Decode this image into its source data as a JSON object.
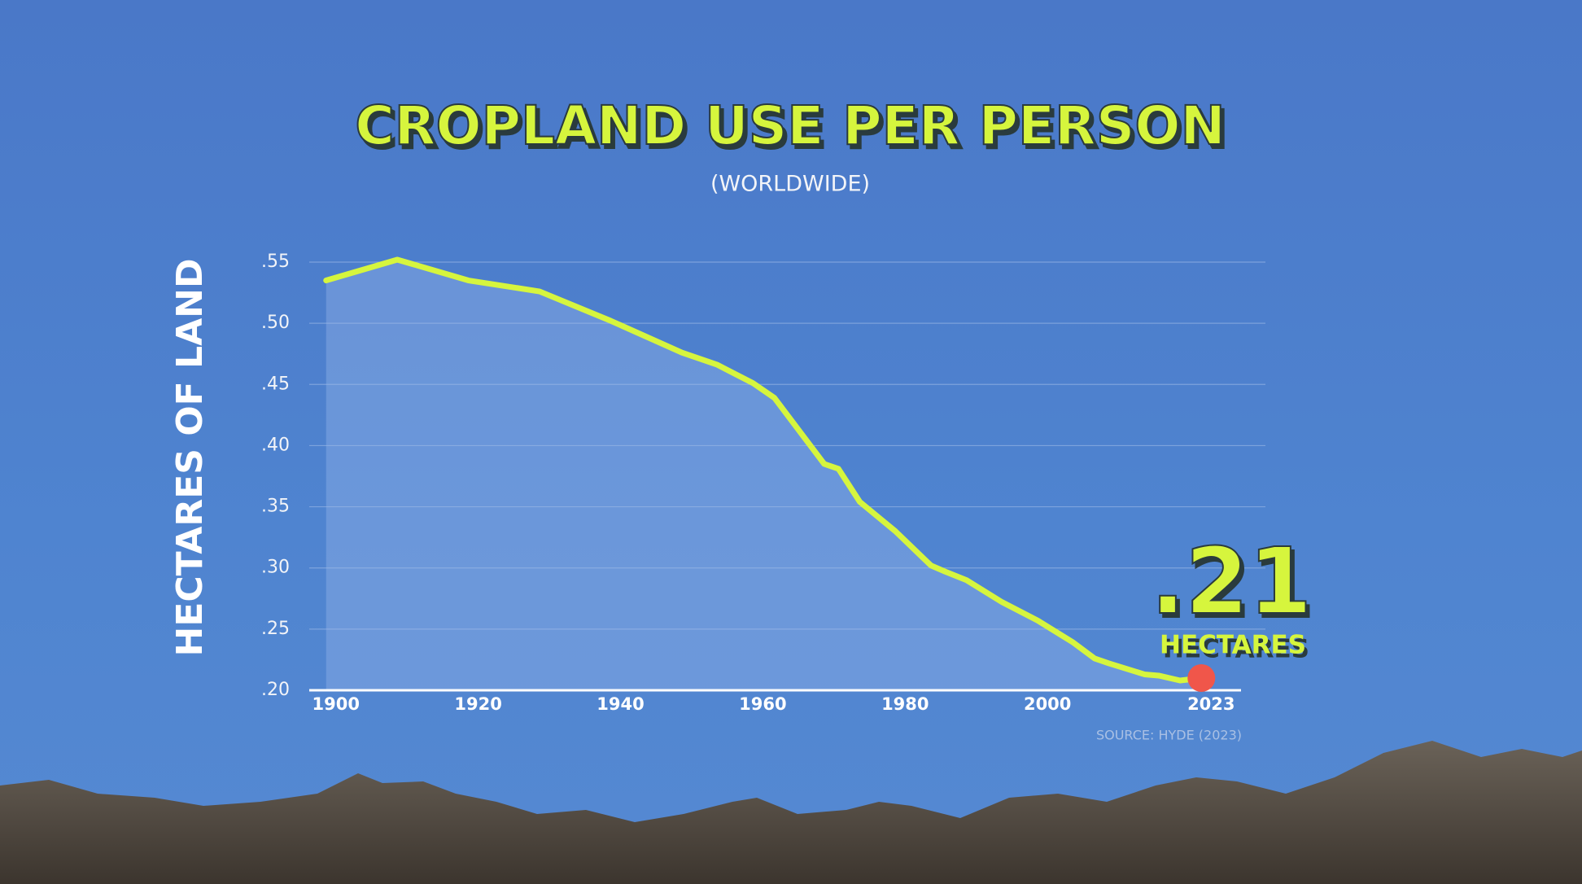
{
  "chart_data": {
    "type": "line",
    "title": "CROPLAND USE PER PERSON",
    "subtitle": "(WORLDWIDE)",
    "y_label": "HECTARES OF LAND",
    "source": "SOURCE: HYDE (2023)",
    "annotation": {
      "text": ".21",
      "unit": "HECTARES"
    },
    "color": "#d6f53e",
    "marker_color": "#f0564a",
    "x": [
      1900,
      1910,
      1920,
      1930,
      1940,
      1950,
      1955,
      1960,
      1963,
      1970,
      1972,
      1975,
      1980,
      1985,
      1987,
      1990,
      1995,
      2000,
      2005,
      2008,
      2010,
      2015,
      2017,
      2020,
      2023
    ],
    "values": [
      0.535,
      0.552,
      0.535,
      0.526,
      0.502,
      0.476,
      0.466,
      0.451,
      0.439,
      0.385,
      0.381,
      0.354,
      0.33,
      0.302,
      0.297,
      0.29,
      0.272,
      0.257,
      0.239,
      0.226,
      0.222,
      0.213,
      0.212,
      0.208,
      0.21
    ],
    "xlim": [
      1899,
      2032
    ],
    "ylim": [
      0.2,
      0.55
    ],
    "xticks": [
      1900,
      1920,
      1940,
      1960,
      1980,
      2000,
      2023
    ],
    "yticks": [
      {
        "value": 0.2,
        "label": ".20"
      },
      {
        "value": 0.25,
        "label": ".25"
      },
      {
        "value": 0.3,
        "label": ".30"
      },
      {
        "value": 0.35,
        "label": ".35"
      },
      {
        "value": 0.4,
        "label": ".40"
      },
      {
        "value": 0.45,
        "label": ".45"
      },
      {
        "value": 0.5,
        "label": ".50"
      },
      {
        "value": 0.55,
        "label": ".55"
      }
    ],
    "grid": true
  }
}
